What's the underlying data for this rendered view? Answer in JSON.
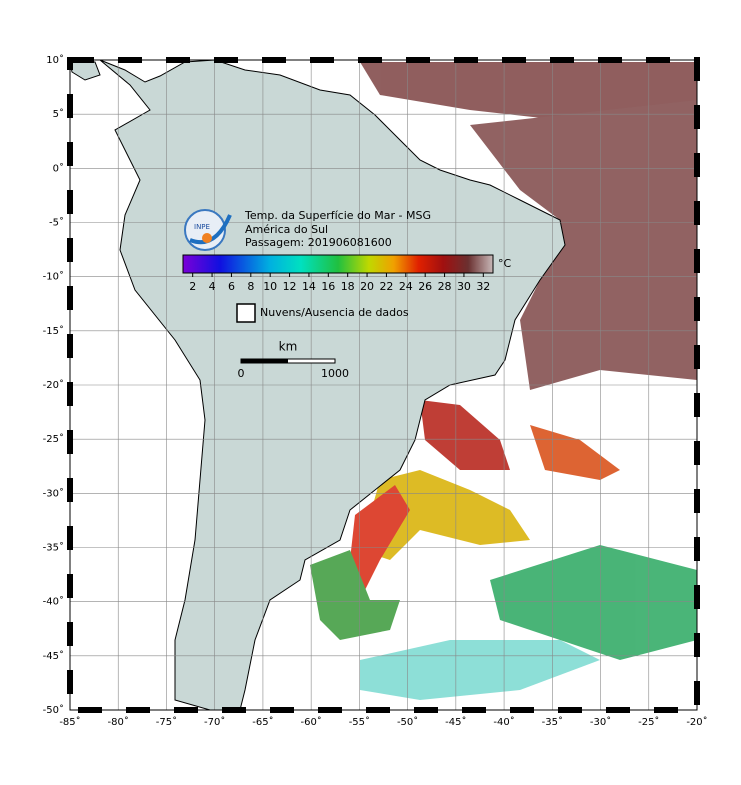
{
  "map": {
    "title": "Temp. da Superfície do Mar - MSG",
    "region": "América do Sul",
    "pass": "Passagem: 201906081600",
    "logo_text": "INPE",
    "lon_ticks": [
      {
        "value": -85,
        "label": "-85˚"
      },
      {
        "value": -80,
        "label": "-80˚"
      },
      {
        "value": -75,
        "label": "-75˚"
      },
      {
        "value": -70,
        "label": "-70˚"
      },
      {
        "value": -65,
        "label": "-65˚"
      },
      {
        "value": -60,
        "label": "-60˚"
      },
      {
        "value": -55,
        "label": "-55˚"
      },
      {
        "value": -50,
        "label": "-50˚"
      },
      {
        "value": -45,
        "label": "-45˚"
      },
      {
        "value": -40,
        "label": "-40˚"
      },
      {
        "value": -35,
        "label": "-35˚"
      },
      {
        "value": -30,
        "label": "-30˚"
      },
      {
        "value": -25,
        "label": "-25˚"
      },
      {
        "value": -20,
        "label": "-20˚"
      }
    ],
    "lat_ticks": [
      {
        "value": 10,
        "label": "10˚"
      },
      {
        "value": 5,
        "label": "5˚"
      },
      {
        "value": 0,
        "label": "0˚"
      },
      {
        "value": -5,
        "label": "-5˚"
      },
      {
        "value": -10,
        "label": "-10˚"
      },
      {
        "value": -15,
        "label": "-15˚"
      },
      {
        "value": -20,
        "label": "-20˚"
      },
      {
        "value": -25,
        "label": "-25˚"
      },
      {
        "value": -30,
        "label": "-30˚"
      },
      {
        "value": -35,
        "label": "-35˚"
      },
      {
        "value": -40,
        "label": "-40˚"
      },
      {
        "value": -45,
        "label": "-45˚"
      },
      {
        "value": -50,
        "label": "-50˚"
      }
    ],
    "colorbar": {
      "unit": "°C",
      "range": [
        1,
        33
      ],
      "ticks": [
        2,
        4,
        6,
        8,
        10,
        12,
        14,
        16,
        18,
        20,
        22,
        24,
        26,
        28,
        30,
        32
      ]
    },
    "legend": "Nuvens/Ausencia de dados",
    "scale": {
      "unit": "km",
      "start": "0",
      "end": "1000"
    }
  }
}
